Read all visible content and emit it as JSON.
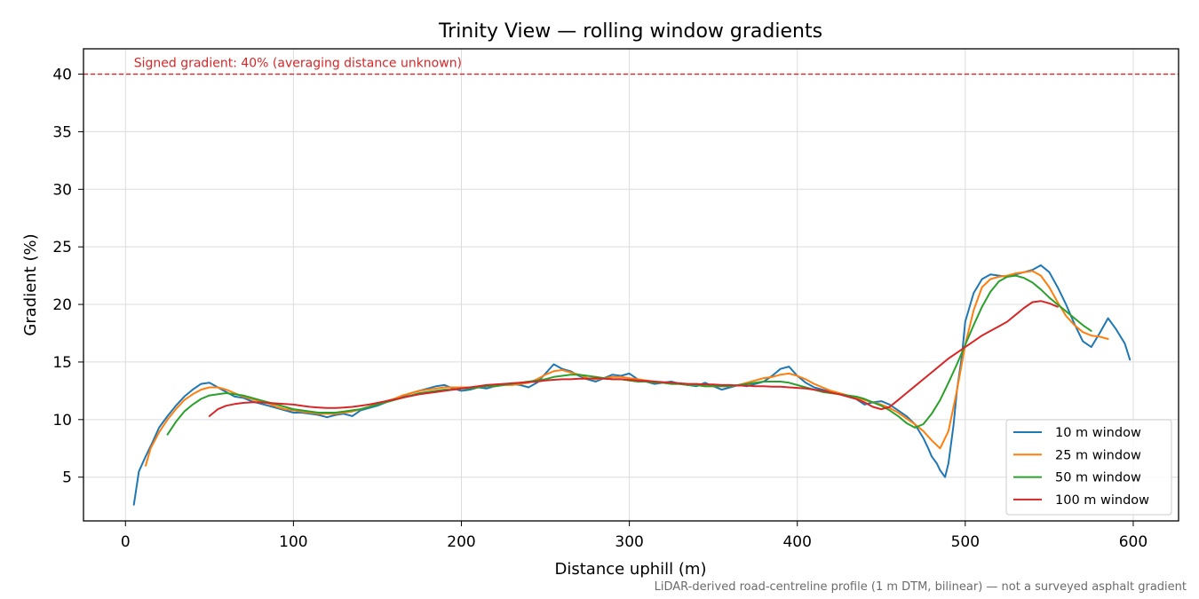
{
  "chart_data": {
    "type": "line",
    "title": "Trinity View — rolling window gradients",
    "xlabel": "Distance uphill (m)",
    "ylabel": "Gradient (%)",
    "xlim": [
      -25,
      627
    ],
    "ylim": [
      1.2,
      42.2
    ],
    "xticks": [
      0,
      100,
      200,
      300,
      400,
      500,
      600
    ],
    "yticks": [
      5,
      10,
      15,
      20,
      25,
      30,
      35,
      40
    ],
    "grid": true,
    "legend_position": "bottom-right",
    "reference_line": {
      "y": 40,
      "label": "Signed gradient: 40% (averaging distance unknown)",
      "color": "#d62728",
      "style": "dashed"
    },
    "footnote": "LiDAR-derived road-centreline profile (1 m DTM, bilinear) — not a surveyed asphalt gradient",
    "series": [
      {
        "name": "10 m window",
        "color": "#1f77b4",
        "x": [
          5,
          8,
          12,
          16,
          20,
          25,
          30,
          35,
          40,
          45,
          50,
          55,
          60,
          65,
          70,
          75,
          80,
          85,
          90,
          95,
          100,
          105,
          110,
          115,
          120,
          125,
          130,
          135,
          140,
          145,
          150,
          155,
          160,
          165,
          170,
          175,
          180,
          185,
          190,
          195,
          200,
          205,
          210,
          215,
          220,
          225,
          230,
          235,
          240,
          245,
          250,
          255,
          260,
          265,
          270,
          275,
          280,
          285,
          290,
          295,
          300,
          305,
          310,
          315,
          320,
          325,
          330,
          335,
          340,
          345,
          350,
          355,
          360,
          365,
          370,
          375,
          380,
          385,
          390,
          395,
          400,
          405,
          410,
          415,
          420,
          425,
          430,
          435,
          440,
          445,
          450,
          455,
          460,
          465,
          470,
          475,
          478,
          480,
          483,
          485,
          488,
          490,
          493,
          495,
          498,
          500,
          505,
          510,
          515,
          520,
          525,
          530,
          535,
          540,
          545,
          550,
          555,
          560,
          565,
          570,
          575,
          580,
          585,
          590,
          595,
          598
        ],
        "y": [
          2.6,
          5.5,
          6.8,
          8.0,
          9.3,
          10.3,
          11.2,
          12.0,
          12.6,
          13.1,
          13.2,
          12.8,
          12.4,
          12.0,
          11.9,
          11.6,
          11.4,
          11.2,
          11.0,
          10.8,
          10.6,
          10.6,
          10.5,
          10.4,
          10.2,
          10.4,
          10.5,
          10.3,
          10.8,
          11.0,
          11.2,
          11.5,
          11.8,
          12.0,
          12.3,
          12.5,
          12.7,
          12.9,
          13.0,
          12.7,
          12.5,
          12.6,
          12.8,
          12.7,
          12.9,
          13.0,
          13.1,
          13.0,
          12.8,
          13.2,
          14.0,
          14.8,
          14.4,
          14.2,
          13.8,
          13.5,
          13.3,
          13.6,
          13.9,
          13.8,
          14.0,
          13.5,
          13.3,
          13.1,
          13.2,
          13.3,
          13.1,
          13.0,
          12.9,
          13.2,
          12.9,
          12.6,
          12.8,
          13.0,
          12.9,
          13.1,
          13.3,
          13.8,
          14.4,
          14.6,
          13.8,
          13.2,
          12.8,
          12.6,
          12.4,
          12.2,
          12.0,
          11.8,
          11.3,
          11.5,
          11.6,
          11.3,
          10.8,
          10.3,
          9.6,
          8.4,
          7.5,
          6.8,
          6.2,
          5.6,
          5.0,
          6.2,
          9.5,
          12.5,
          15.5,
          18.5,
          21.0,
          22.2,
          22.6,
          22.5,
          22.4,
          22.6,
          22.8,
          23.0,
          23.4,
          22.8,
          21.5,
          20.0,
          18.3,
          16.8,
          16.3,
          17.5,
          18.8,
          17.8,
          16.6,
          15.2
        ]
      },
      {
        "name": "25 m window",
        "color": "#ff7f0e",
        "x": [
          12,
          15,
          20,
          25,
          30,
          35,
          40,
          45,
          50,
          55,
          60,
          65,
          70,
          75,
          80,
          85,
          90,
          95,
          100,
          105,
          110,
          115,
          120,
          125,
          130,
          135,
          140,
          145,
          150,
          155,
          160,
          165,
          170,
          175,
          180,
          185,
          190,
          195,
          200,
          205,
          210,
          215,
          220,
          225,
          230,
          235,
          240,
          245,
          250,
          255,
          260,
          265,
          270,
          275,
          280,
          285,
          290,
          295,
          300,
          305,
          310,
          315,
          320,
          325,
          330,
          335,
          340,
          345,
          350,
          355,
          360,
          365,
          370,
          375,
          380,
          385,
          390,
          395,
          400,
          405,
          410,
          415,
          420,
          425,
          430,
          435,
          440,
          445,
          450,
          455,
          460,
          465,
          470,
          475,
          480,
          485,
          490,
          495,
          500,
          505,
          510,
          515,
          520,
          525,
          530,
          535,
          540,
          545,
          550,
          555,
          560,
          565,
          570,
          575,
          580,
          585
        ],
        "y": [
          6.0,
          7.5,
          8.9,
          10.0,
          10.9,
          11.7,
          12.2,
          12.6,
          12.8,
          12.8,
          12.6,
          12.3,
          12.0,
          11.8,
          11.6,
          11.4,
          11.1,
          10.9,
          10.8,
          10.7,
          10.6,
          10.5,
          10.5,
          10.5,
          10.6,
          10.7,
          10.9,
          11.1,
          11.4,
          11.6,
          11.8,
          12.1,
          12.3,
          12.5,
          12.6,
          12.7,
          12.8,
          12.8,
          12.8,
          12.8,
          12.8,
          12.9,
          12.9,
          13.0,
          13.0,
          13.1,
          13.2,
          13.5,
          13.9,
          14.2,
          14.3,
          14.1,
          13.9,
          13.6,
          13.5,
          13.6,
          13.7,
          13.7,
          13.6,
          13.5,
          13.4,
          13.3,
          13.2,
          13.1,
          13.1,
          13.0,
          13.0,
          12.9,
          12.9,
          12.9,
          12.9,
          13.0,
          13.2,
          13.4,
          13.6,
          13.7,
          13.9,
          14.0,
          13.8,
          13.5,
          13.1,
          12.8,
          12.5,
          12.3,
          12.1,
          11.9,
          11.7,
          11.5,
          11.3,
          11.0,
          10.6,
          10.1,
          9.6,
          9.0,
          8.2,
          7.5,
          9.0,
          12.5,
          16.5,
          19.5,
          21.5,
          22.2,
          22.4,
          22.5,
          22.7,
          22.8,
          22.9,
          22.5,
          21.5,
          20.2,
          19.0,
          18.2,
          17.6,
          17.3,
          17.2,
          17.0
        ]
      },
      {
        "name": "50 m window",
        "color": "#2ca02c",
        "x": [
          25,
          30,
          35,
          40,
          45,
          50,
          55,
          60,
          65,
          70,
          75,
          80,
          85,
          90,
          95,
          100,
          105,
          110,
          115,
          120,
          125,
          130,
          135,
          140,
          145,
          150,
          155,
          160,
          165,
          170,
          175,
          180,
          185,
          190,
          195,
          200,
          205,
          210,
          215,
          220,
          225,
          230,
          235,
          240,
          245,
          250,
          255,
          260,
          265,
          270,
          275,
          280,
          285,
          290,
          295,
          300,
          305,
          310,
          315,
          320,
          325,
          330,
          335,
          340,
          345,
          350,
          355,
          360,
          365,
          370,
          375,
          380,
          385,
          390,
          395,
          400,
          405,
          410,
          415,
          420,
          425,
          430,
          435,
          440,
          445,
          450,
          455,
          460,
          465,
          470,
          475,
          480,
          485,
          490,
          495,
          500,
          505,
          510,
          515,
          520,
          525,
          530,
          535,
          540,
          545,
          550,
          555,
          560,
          565,
          570,
          575
        ],
        "y": [
          8.7,
          9.8,
          10.7,
          11.3,
          11.8,
          12.1,
          12.2,
          12.3,
          12.2,
          12.1,
          11.9,
          11.7,
          11.5,
          11.3,
          11.1,
          10.9,
          10.8,
          10.7,
          10.6,
          10.6,
          10.6,
          10.7,
          10.8,
          10.9,
          11.1,
          11.3,
          11.5,
          11.7,
          11.9,
          12.1,
          12.3,
          12.4,
          12.5,
          12.6,
          12.6,
          12.7,
          12.7,
          12.8,
          12.9,
          12.9,
          13.0,
          13.1,
          13.2,
          13.3,
          13.4,
          13.5,
          13.7,
          13.8,
          13.9,
          13.9,
          13.8,
          13.7,
          13.6,
          13.5,
          13.5,
          13.4,
          13.3,
          13.3,
          13.2,
          13.2,
          13.1,
          13.1,
          13.0,
          13.0,
          12.9,
          12.9,
          12.9,
          12.9,
          13.0,
          13.1,
          13.2,
          13.3,
          13.3,
          13.3,
          13.2,
          13.0,
          12.8,
          12.6,
          12.4,
          12.3,
          12.2,
          12.1,
          12.0,
          11.8,
          11.5,
          11.2,
          10.8,
          10.3,
          9.7,
          9.3,
          9.6,
          10.5,
          11.7,
          13.2,
          14.8,
          16.5,
          18.2,
          19.8,
          21.1,
          22.0,
          22.4,
          22.5,
          22.3,
          21.9,
          21.3,
          20.6,
          20.0,
          19.4,
          18.8,
          18.2,
          17.7
        ]
      },
      {
        "name": "100 m window",
        "color": "#d62728",
        "x": [
          50,
          55,
          60,
          65,
          70,
          75,
          80,
          85,
          90,
          95,
          100,
          105,
          110,
          115,
          120,
          125,
          130,
          135,
          140,
          145,
          150,
          155,
          160,
          165,
          170,
          175,
          180,
          185,
          190,
          195,
          200,
          205,
          210,
          215,
          220,
          225,
          230,
          235,
          240,
          245,
          250,
          255,
          260,
          265,
          270,
          275,
          280,
          285,
          290,
          295,
          300,
          305,
          310,
          315,
          320,
          325,
          330,
          335,
          340,
          345,
          350,
          355,
          360,
          365,
          370,
          375,
          380,
          385,
          390,
          395,
          400,
          405,
          410,
          415,
          420,
          425,
          430,
          435,
          440,
          445,
          450,
          455,
          460,
          465,
          470,
          475,
          480,
          485,
          490,
          495,
          500,
          505,
          510,
          515,
          520,
          525,
          530,
          535,
          540,
          545,
          550,
          555
        ],
        "y": [
          10.3,
          10.9,
          11.2,
          11.35,
          11.45,
          11.5,
          11.5,
          11.45,
          11.4,
          11.35,
          11.3,
          11.2,
          11.1,
          11.05,
          11.0,
          11.0,
          11.05,
          11.1,
          11.2,
          11.3,
          11.45,
          11.6,
          11.75,
          11.9,
          12.05,
          12.2,
          12.3,
          12.4,
          12.5,
          12.6,
          12.7,
          12.8,
          12.9,
          13.0,
          13.05,
          13.1,
          13.15,
          13.2,
          13.25,
          13.3,
          13.4,
          13.45,
          13.5,
          13.5,
          13.55,
          13.55,
          13.6,
          13.55,
          13.5,
          13.5,
          13.45,
          13.4,
          13.35,
          13.3,
          13.25,
          13.2,
          13.15,
          13.1,
          13.1,
          13.05,
          13.05,
          13.0,
          13.0,
          12.95,
          12.95,
          12.9,
          12.9,
          12.85,
          12.85,
          12.8,
          12.75,
          12.7,
          12.6,
          12.5,
          12.35,
          12.2,
          12.0,
          11.8,
          11.5,
          11.1,
          10.9,
          11.1,
          11.7,
          12.3,
          12.9,
          13.5,
          14.1,
          14.7,
          15.3,
          15.8,
          16.3,
          16.8,
          17.3,
          17.7,
          18.1,
          18.5,
          19.1,
          19.7,
          20.2,
          20.3,
          20.1,
          19.8
        ]
      }
    ]
  }
}
